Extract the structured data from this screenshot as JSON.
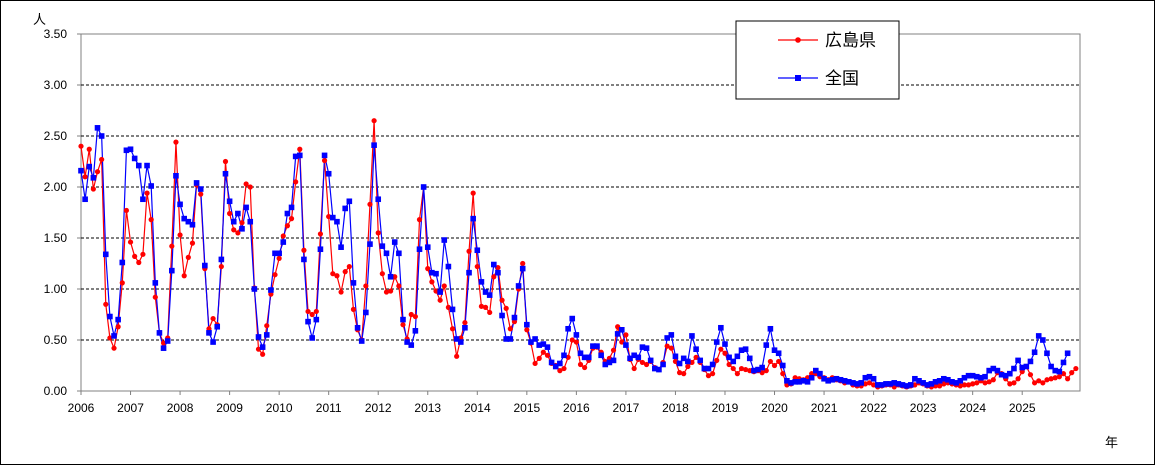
{
  "chart_data": {
    "type": "line",
    "title": "",
    "ylabel": "人",
    "xlabel": "年",
    "ylim": [
      0,
      3.5
    ],
    "yticks": [
      "0.00",
      "0.50",
      "1.00",
      "1.50",
      "2.00",
      "2.50",
      "3.00",
      "3.50"
    ],
    "xticks": [
      "2006",
      "2007",
      "2008",
      "2009",
      "2010",
      "2011",
      "2012",
      "2013",
      "2014",
      "2015",
      "2016",
      "2017",
      "2018",
      "2019",
      "2020",
      "2021",
      "2022",
      "2023",
      "2024",
      "2025"
    ],
    "x_start": "2006-01",
    "x_frequency": "monthly",
    "grid": "horizontal dashed",
    "legend_position": "top-right",
    "series": [
      {
        "name": "広島県",
        "color": "#ff0000",
        "marker": "circle",
        "values": [
          2.4,
          2.1,
          2.37,
          1.98,
          2.15,
          2.27,
          0.85,
          0.52,
          0.42,
          0.63,
          1.06,
          1.77,
          1.46,
          1.32,
          1.26,
          1.34,
          1.94,
          1.68,
          0.92,
          0.57,
          0.47,
          0.52,
          1.42,
          2.44,
          1.53,
          1.13,
          1.31,
          1.45,
          2.02,
          1.93,
          1.2,
          0.61,
          0.71,
          0.65,
          1.22,
          2.25,
          1.74,
          1.58,
          1.55,
          1.65,
          2.03,
          2.0,
          1.01,
          0.41,
          0.36,
          0.64,
          0.95,
          1.14,
          1.3,
          1.52,
          1.62,
          1.69,
          2.05,
          2.37,
          1.38,
          0.78,
          0.75,
          0.78,
          1.54,
          2.26,
          1.71,
          1.15,
          1.13,
          0.97,
          1.17,
          1.22,
          0.8,
          0.6,
          0.5,
          1.03,
          1.83,
          2.65,
          1.55,
          1.15,
          0.97,
          0.98,
          1.12,
          1.03,
          0.65,
          0.51,
          0.75,
          0.73,
          1.68,
          2.0,
          1.2,
          1.07,
          0.98,
          0.89,
          1.03,
          0.82,
          0.61,
          0.34,
          0.52,
          0.67,
          1.37,
          1.94,
          1.22,
          0.83,
          0.82,
          0.77,
          1.12,
          1.21,
          0.89,
          0.81,
          0.61,
          0.68,
          1.0,
          1.25,
          0.6,
          0.47,
          0.27,
          0.32,
          0.38,
          0.35,
          0.27,
          0.25,
          0.2,
          0.22,
          0.33,
          0.5,
          0.48,
          0.26,
          0.23,
          0.3,
          0.42,
          0.43,
          0.38,
          0.29,
          0.32,
          0.4,
          0.63,
          0.48,
          0.55,
          0.31,
          0.22,
          0.31,
          0.28,
          0.26,
          0.29,
          0.23,
          0.21,
          0.28,
          0.44,
          0.42,
          0.29,
          0.18,
          0.17,
          0.24,
          0.28,
          0.33,
          0.28,
          0.21,
          0.15,
          0.17,
          0.3,
          0.41,
          0.37,
          0.26,
          0.22,
          0.17,
          0.22,
          0.21,
          0.2,
          0.19,
          0.2,
          0.18,
          0.2,
          0.29,
          0.25,
          0.29,
          0.17,
          0.06,
          0.07,
          0.13,
          0.12,
          0.11,
          0.13,
          0.17,
          0.17,
          0.14,
          0.13,
          0.11,
          0.13,
          0.11,
          0.1,
          0.08,
          0.09,
          0.06,
          0.05,
          0.05,
          0.07,
          0.08,
          0.06,
          0.04,
          0.05,
          0.06,
          0.06,
          0.04,
          0.06,
          0.05,
          0.04,
          0.05,
          0.06,
          0.08,
          0.07,
          0.05,
          0.04,
          0.05,
          0.05,
          0.07,
          0.08,
          0.07,
          0.06,
          0.05,
          0.06,
          0.06,
          0.07,
          0.08,
          0.1,
          0.08,
          0.09,
          0.11,
          0.18,
          0.17,
          0.12,
          0.07,
          0.08,
          0.12,
          0.19,
          0.24,
          0.16,
          0.08,
          0.1,
          0.08,
          0.11,
          0.12,
          0.13,
          0.14,
          0.17,
          0.12,
          0.18,
          0.22
        ]
      },
      {
        "name": "全国",
        "color": "#0000ff",
        "marker": "square",
        "values": [
          2.16,
          1.88,
          2.2,
          2.09,
          2.58,
          2.5,
          1.34,
          0.73,
          0.54,
          0.7,
          1.26,
          2.36,
          2.37,
          2.28,
          2.21,
          1.88,
          2.21,
          2.01,
          1.06,
          0.57,
          0.42,
          0.49,
          1.18,
          2.11,
          1.83,
          1.69,
          1.66,
          1.63,
          2.04,
          1.98,
          1.23,
          0.57,
          0.48,
          0.63,
          1.29,
          2.13,
          1.86,
          1.66,
          1.74,
          1.59,
          1.8,
          1.66,
          1.0,
          0.53,
          0.43,
          0.55,
          0.99,
          1.35,
          1.35,
          1.46,
          1.74,
          1.8,
          2.3,
          2.31,
          1.29,
          0.68,
          0.52,
          0.7,
          1.39,
          2.31,
          2.13,
          1.7,
          1.66,
          1.41,
          1.79,
          1.86,
          1.06,
          0.62,
          0.49,
          0.77,
          1.44,
          2.41,
          1.88,
          1.42,
          1.35,
          1.12,
          1.46,
          1.35,
          0.7,
          0.48,
          0.45,
          0.59,
          1.39,
          2.0,
          1.41,
          1.16,
          1.15,
          0.97,
          1.48,
          1.22,
          0.8,
          0.51,
          0.48,
          0.62,
          1.16,
          1.69,
          1.38,
          1.07,
          0.97,
          0.94,
          1.24,
          1.16,
          0.74,
          0.51,
          0.51,
          0.72,
          1.03,
          1.2,
          0.65,
          0.48,
          0.51,
          0.45,
          0.46,
          0.43,
          0.28,
          0.24,
          0.27,
          0.35,
          0.61,
          0.71,
          0.55,
          0.37,
          0.33,
          0.33,
          0.44,
          0.44,
          0.35,
          0.26,
          0.28,
          0.3,
          0.56,
          0.6,
          0.45,
          0.32,
          0.35,
          0.33,
          0.43,
          0.42,
          0.3,
          0.22,
          0.21,
          0.26,
          0.52,
          0.55,
          0.34,
          0.27,
          0.32,
          0.29,
          0.54,
          0.41,
          0.3,
          0.22,
          0.22,
          0.26,
          0.48,
          0.62,
          0.46,
          0.33,
          0.29,
          0.34,
          0.4,
          0.41,
          0.32,
          0.2,
          0.21,
          0.23,
          0.45,
          0.61,
          0.4,
          0.37,
          0.25,
          0.1,
          0.08,
          0.09,
          0.09,
          0.1,
          0.09,
          0.13,
          0.2,
          0.17,
          0.12,
          0.1,
          0.11,
          0.12,
          0.11,
          0.1,
          0.09,
          0.08,
          0.07,
          0.08,
          0.13,
          0.14,
          0.12,
          0.06,
          0.06,
          0.07,
          0.07,
          0.08,
          0.07,
          0.06,
          0.05,
          0.06,
          0.12,
          0.1,
          0.08,
          0.06,
          0.07,
          0.09,
          0.1,
          0.12,
          0.11,
          0.09,
          0.08,
          0.1,
          0.13,
          0.15,
          0.15,
          0.14,
          0.13,
          0.14,
          0.2,
          0.22,
          0.2,
          0.16,
          0.15,
          0.17,
          0.22,
          0.3,
          0.23,
          0.24,
          0.29,
          0.38,
          0.54,
          0.5,
          0.37,
          0.24,
          0.2,
          0.19,
          0.28,
          0.37
        ]
      }
    ]
  }
}
